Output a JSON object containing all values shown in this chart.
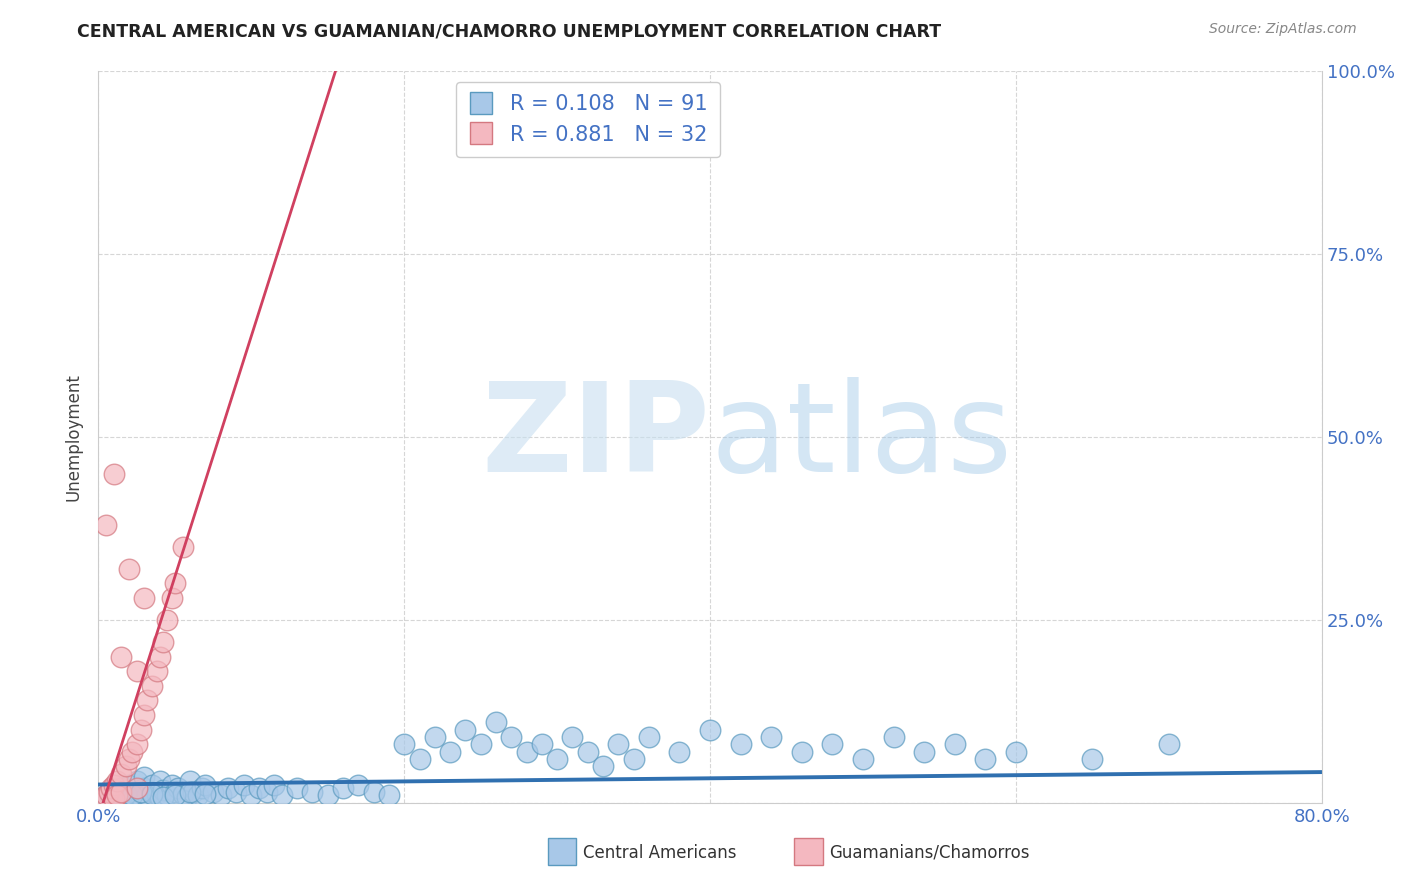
{
  "title": "CENTRAL AMERICAN VS GUAMANIAN/CHAMORRO UNEMPLOYMENT CORRELATION CHART",
  "source": "Source: ZipAtlas.com",
  "ylabel": "Unemployment",
  "xlim": [
    0.0,
    0.8
  ],
  "ylim": [
    0.0,
    1.0
  ],
  "R_blue": 0.108,
  "N_blue": 91,
  "R_pink": 0.881,
  "N_pink": 32,
  "blue_scatter_color": "#a8c8e8",
  "blue_edge_color": "#5a9abf",
  "pink_scatter_color": "#f4b8c0",
  "pink_edge_color": "#d47880",
  "blue_line_color": "#3070b0",
  "pink_line_color": "#d04060",
  "watermark_zip": "ZIP",
  "watermark_atlas": "atlas",
  "legend_label_blue": "Central Americans",
  "legend_label_pink": "Guamanians/Chamorros",
  "blue_x": [
    0.005,
    0.008,
    0.01,
    0.012,
    0.015,
    0.015,
    0.018,
    0.02,
    0.02,
    0.022,
    0.025,
    0.025,
    0.028,
    0.03,
    0.03,
    0.032,
    0.035,
    0.035,
    0.038,
    0.04,
    0.04,
    0.042,
    0.045,
    0.048,
    0.05,
    0.052,
    0.055,
    0.058,
    0.06,
    0.062,
    0.065,
    0.068,
    0.07,
    0.075,
    0.08,
    0.085,
    0.09,
    0.095,
    0.1,
    0.105,
    0.11,
    0.115,
    0.12,
    0.13,
    0.14,
    0.15,
    0.16,
    0.17,
    0.18,
    0.19,
    0.2,
    0.21,
    0.22,
    0.23,
    0.24,
    0.25,
    0.26,
    0.27,
    0.28,
    0.29,
    0.3,
    0.31,
    0.32,
    0.33,
    0.34,
    0.35,
    0.36,
    0.38,
    0.4,
    0.42,
    0.44,
    0.46,
    0.48,
    0.5,
    0.52,
    0.54,
    0.56,
    0.58,
    0.6,
    0.65,
    0.7,
    0.008,
    0.012,
    0.018,
    0.022,
    0.028,
    0.035,
    0.042,
    0.05,
    0.06,
    0.07
  ],
  "blue_y": [
    0.01,
    0.008,
    0.015,
    0.012,
    0.005,
    0.02,
    0.01,
    0.025,
    0.008,
    0.015,
    0.012,
    0.03,
    0.008,
    0.02,
    0.035,
    0.01,
    0.025,
    0.015,
    0.012,
    0.008,
    0.03,
    0.018,
    0.01,
    0.025,
    0.015,
    0.02,
    0.012,
    0.008,
    0.03,
    0.015,
    0.01,
    0.02,
    0.025,
    0.015,
    0.01,
    0.02,
    0.015,
    0.025,
    0.01,
    0.02,
    0.015,
    0.025,
    0.01,
    0.02,
    0.015,
    0.01,
    0.02,
    0.025,
    0.015,
    0.01,
    0.08,
    0.06,
    0.09,
    0.07,
    0.1,
    0.08,
    0.11,
    0.09,
    0.07,
    0.08,
    0.06,
    0.09,
    0.07,
    0.05,
    0.08,
    0.06,
    0.09,
    0.07,
    0.1,
    0.08,
    0.09,
    0.07,
    0.08,
    0.06,
    0.09,
    0.07,
    0.08,
    0.06,
    0.07,
    0.06,
    0.08,
    0.005,
    0.008,
    0.012,
    0.01,
    0.015,
    0.012,
    0.008,
    0.01,
    0.015,
    0.012
  ],
  "pink_x": [
    0.003,
    0.005,
    0.007,
    0.008,
    0.01,
    0.01,
    0.012,
    0.012,
    0.015,
    0.015,
    0.018,
    0.02,
    0.022,
    0.025,
    0.025,
    0.028,
    0.03,
    0.032,
    0.035,
    0.038,
    0.04,
    0.042,
    0.045,
    0.048,
    0.05,
    0.055,
    0.01,
    0.015,
    0.02,
    0.025,
    0.005,
    0.03
  ],
  "pink_y": [
    0.005,
    0.01,
    0.015,
    0.02,
    0.025,
    0.005,
    0.03,
    0.01,
    0.015,
    0.04,
    0.05,
    0.06,
    0.07,
    0.08,
    0.02,
    0.1,
    0.12,
    0.14,
    0.16,
    0.18,
    0.2,
    0.22,
    0.25,
    0.28,
    0.3,
    0.35,
    0.45,
    0.2,
    0.32,
    0.18,
    0.38,
    0.28
  ],
  "blue_line_x": [
    0.0,
    0.8
  ],
  "blue_line_y": [
    0.025,
    0.042
  ],
  "pink_line_x": [
    0.0,
    0.155
  ],
  "pink_line_y": [
    -0.02,
    1.0
  ]
}
